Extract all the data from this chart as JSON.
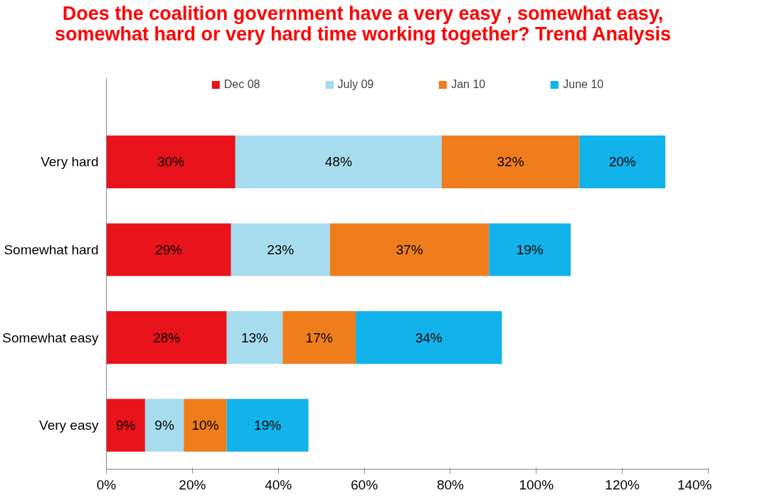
{
  "chart_data": {
    "type": "bar",
    "orientation": "horizontal",
    "stacked": true,
    "title": "Does the coalition government have a very easy , somewhat easy, somewhat hard or very hard time working together? Trend Analysis",
    "categories": [
      "Very hard",
      "Somewhat hard",
      "Somewhat easy",
      "Very easy"
    ],
    "series": [
      {
        "name": "Dec 08",
        "color": "#e8131b",
        "values": [
          30,
          29,
          28,
          9
        ],
        "value_labels": [
          "30%",
          "29%",
          "28%",
          "9%"
        ]
      },
      {
        "name": "July 09",
        "color": "#a6dcee",
        "values": [
          48,
          23,
          13,
          9
        ],
        "value_labels": [
          "48%",
          "23%",
          "13%",
          "9%"
        ]
      },
      {
        "name": "Jan 10",
        "color": "#f07d1c",
        "values": [
          32,
          37,
          17,
          10
        ],
        "value_labels": [
          "32%",
          "37%",
          "17%",
          "10%"
        ]
      },
      {
        "name": "June 10",
        "color": "#12b2ea",
        "values": [
          20,
          19,
          34,
          19
        ],
        "value_labels": [
          "20%",
          "19%",
          "34%",
          "19%"
        ]
      }
    ],
    "xlim": [
      0,
      140
    ],
    "xticks": [
      {
        "value": 0,
        "label": "0%"
      },
      {
        "value": 20,
        "label": "20%"
      },
      {
        "value": 40,
        "label": "40%"
      },
      {
        "value": 60,
        "label": "60%"
      },
      {
        "value": 80,
        "label": "80%"
      },
      {
        "value": 100,
        "label": "100%"
      },
      {
        "value": 120,
        "label": "120%"
      },
      {
        "value": 140,
        "label": "140%"
      }
    ],
    "grid": false,
    "legend": "top"
  }
}
